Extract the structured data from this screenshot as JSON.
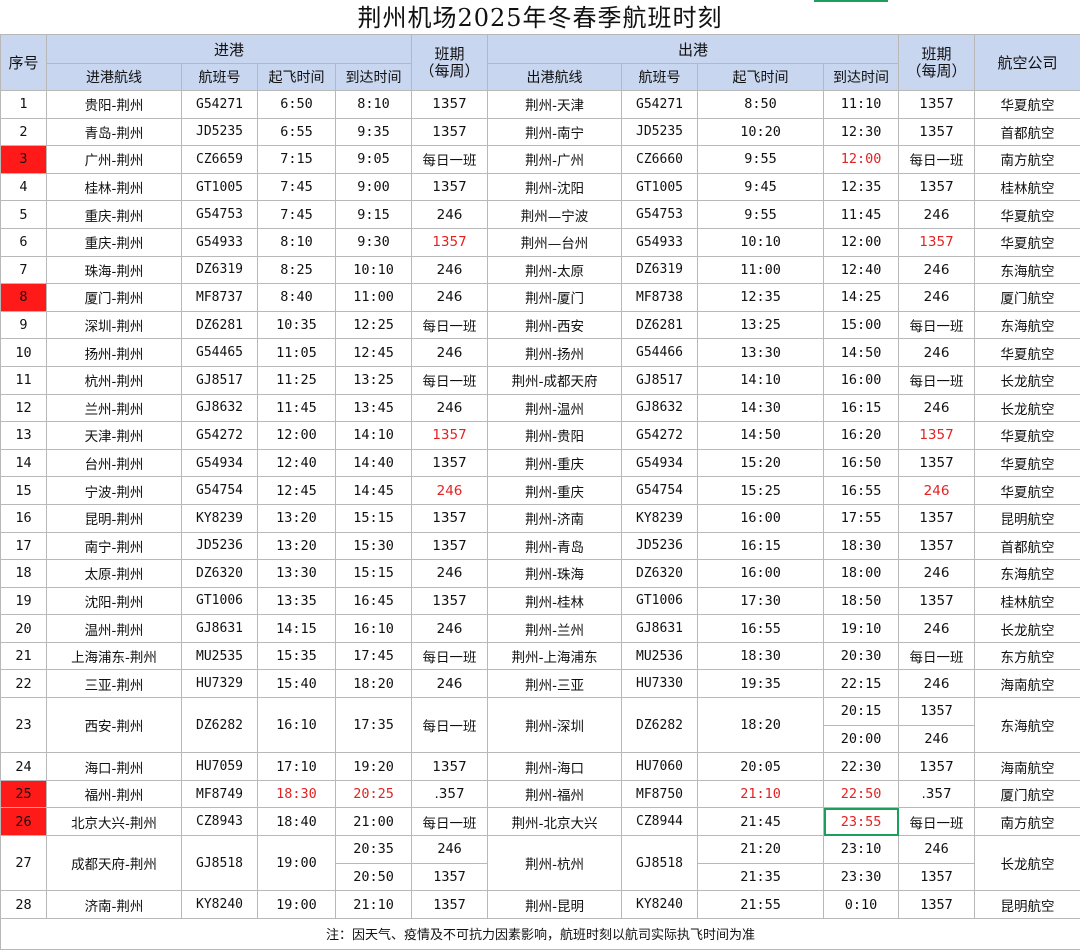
{
  "title": "荆州机场2025年冬春季航班时刻",
  "header": {
    "seq": "序号",
    "arrive_group": "进港",
    "depart_group": "出港",
    "freq": "班期\n（每周）",
    "airline": "航空公司",
    "arr_route": "进港航线",
    "dep_route": "出港航线",
    "flight_no": "航班号",
    "takeoff": "起飞时间",
    "landing": "到达时间"
  },
  "rows": [
    {
      "seq": "1",
      "arr_route": "贵阳-荆州",
      "arr_flight": "G54271",
      "arr_takeoff": "6:50",
      "arr_land": "8:10",
      "arr_freq": "1357",
      "dep_route": "荆州-天津",
      "dep_flight": "G54271",
      "dep_takeoff": "8:50",
      "dep_land": "11:10",
      "dep_freq": "1357",
      "airline": "华夏航空"
    },
    {
      "seq": "2",
      "arr_route": "青岛-荆州",
      "arr_flight": "JD5235",
      "arr_takeoff": "6:55",
      "arr_land": "9:35",
      "arr_freq": "1357",
      "dep_route": "荆州-南宁",
      "dep_flight": "JD5235",
      "dep_takeoff": "10:20",
      "dep_land": "12:30",
      "dep_freq": "1357",
      "airline": "首都航空"
    },
    {
      "seq": "3",
      "arr_route": "广州-荆州",
      "arr_flight": "CZ6659",
      "arr_takeoff": "7:15",
      "arr_land": "9:05",
      "arr_freq": "每日一班",
      "dep_route": "荆州-广州",
      "dep_flight": "CZ6660",
      "dep_takeoff": "9:55",
      "dep_land": "12:00",
      "dep_freq": "每日一班",
      "airline": "南方航空"
    },
    {
      "seq": "4",
      "arr_route": "桂林-荆州",
      "arr_flight": "GT1005",
      "arr_takeoff": "7:45",
      "arr_land": "9:00",
      "arr_freq": "1357",
      "dep_route": "荆州-沈阳",
      "dep_flight": "GT1005",
      "dep_takeoff": "9:45",
      "dep_land": "12:35",
      "dep_freq": "1357",
      "airline": "桂林航空"
    },
    {
      "seq": "5",
      "arr_route": "重庆-荆州",
      "arr_flight": "G54753",
      "arr_takeoff": "7:45",
      "arr_land": "9:15",
      "arr_freq": "246",
      "dep_route": "荆州—宁波",
      "dep_flight": "G54753",
      "dep_takeoff": "9:55",
      "dep_land": "11:45",
      "dep_freq": "246",
      "airline": "华夏航空"
    },
    {
      "seq": "6",
      "arr_route": "重庆-荆州",
      "arr_flight": "G54933",
      "arr_takeoff": "8:10",
      "arr_land": "9:30",
      "arr_freq": "1357",
      "dep_route": "荆州—台州",
      "dep_flight": "G54933",
      "dep_takeoff": "10:10",
      "dep_land": "12:00",
      "dep_freq": "1357",
      "airline": "华夏航空"
    },
    {
      "seq": "7",
      "arr_route": "珠海-荆州",
      "arr_flight": "DZ6319",
      "arr_takeoff": "8:25",
      "arr_land": "10:10",
      "arr_freq": "246",
      "dep_route": "荆州-太原",
      "dep_flight": "DZ6319",
      "dep_takeoff": "11:00",
      "dep_land": "12:40",
      "dep_freq": "246",
      "airline": "东海航空"
    },
    {
      "seq": "8",
      "arr_route": "厦门-荆州",
      "arr_flight": "MF8737",
      "arr_takeoff": "8:40",
      "arr_land": "11:00",
      "arr_freq": "246",
      "dep_route": "荆州-厦门",
      "dep_flight": "MF8738",
      "dep_takeoff": "12:35",
      "dep_land": "14:25",
      "dep_freq": "246",
      "airline": "厦门航空"
    },
    {
      "seq": "9",
      "arr_route": "深圳-荆州",
      "arr_flight": "DZ6281",
      "arr_takeoff": "10:35",
      "arr_land": "12:25",
      "arr_freq": "每日一班",
      "dep_route": "荆州-西安",
      "dep_flight": "DZ6281",
      "dep_takeoff": "13:25",
      "dep_land": "15:00",
      "dep_freq": "每日一班",
      "airline": "东海航空"
    },
    {
      "seq": "10",
      "arr_route": "扬州-荆州",
      "arr_flight": "G54465",
      "arr_takeoff": "11:05",
      "arr_land": "12:45",
      "arr_freq": "246",
      "dep_route": "荆州-扬州",
      "dep_flight": "G54466",
      "dep_takeoff": "13:30",
      "dep_land": "14:50",
      "dep_freq": "246",
      "airline": "华夏航空"
    },
    {
      "seq": "11",
      "arr_route": "杭州-荆州",
      "arr_flight": "GJ8517",
      "arr_takeoff": "11:25",
      "arr_land": "13:25",
      "arr_freq": "每日一班",
      "dep_route": "荆州-成都天府",
      "dep_flight": "GJ8517",
      "dep_takeoff": "14:10",
      "dep_land": "16:00",
      "dep_freq": "每日一班",
      "airline": "长龙航空"
    },
    {
      "seq": "12",
      "arr_route": "兰州-荆州",
      "arr_flight": "GJ8632",
      "arr_takeoff": "11:45",
      "arr_land": "13:45",
      "arr_freq": "246",
      "dep_route": "荆州-温州",
      "dep_flight": "GJ8632",
      "dep_takeoff": "14:30",
      "dep_land": "16:15",
      "dep_freq": "246",
      "airline": "长龙航空"
    },
    {
      "seq": "13",
      "arr_route": "天津-荆州",
      "arr_flight": "G54272",
      "arr_takeoff": "12:00",
      "arr_land": "14:10",
      "arr_freq": "1357",
      "dep_route": "荆州-贵阳",
      "dep_flight": "G54272",
      "dep_takeoff": "14:50",
      "dep_land": "16:20",
      "dep_freq": "1357",
      "airline": "华夏航空"
    },
    {
      "seq": "14",
      "arr_route": "台州-荆州",
      "arr_flight": "G54934",
      "arr_takeoff": "12:40",
      "arr_land": "14:40",
      "arr_freq": "1357",
      "dep_route": "荆州-重庆",
      "dep_flight": "G54934",
      "dep_takeoff": "15:20",
      "dep_land": "16:50",
      "dep_freq": "1357",
      "airline": "华夏航空"
    },
    {
      "seq": "15",
      "arr_route": "宁波-荆州",
      "arr_flight": "G54754",
      "arr_takeoff": "12:45",
      "arr_land": "14:45",
      "arr_freq": "246",
      "dep_route": "荆州-重庆",
      "dep_flight": "G54754",
      "dep_takeoff": "15:25",
      "dep_land": "16:55",
      "dep_freq": "246",
      "airline": "华夏航空"
    },
    {
      "seq": "16",
      "arr_route": "昆明-荆州",
      "arr_flight": "KY8239",
      "arr_takeoff": "13:20",
      "arr_land": "15:15",
      "arr_freq": "1357",
      "dep_route": "荆州-济南",
      "dep_flight": "KY8239",
      "dep_takeoff": "16:00",
      "dep_land": "17:55",
      "dep_freq": "1357",
      "airline": "昆明航空"
    },
    {
      "seq": "17",
      "arr_route": "南宁-荆州",
      "arr_flight": "JD5236",
      "arr_takeoff": "13:20",
      "arr_land": "15:30",
      "arr_freq": "1357",
      "dep_route": "荆州-青岛",
      "dep_flight": "JD5236",
      "dep_takeoff": "16:15",
      "dep_land": "18:30",
      "dep_freq": "1357",
      "airline": "首都航空"
    },
    {
      "seq": "18",
      "arr_route": "太原-荆州",
      "arr_flight": "DZ6320",
      "arr_takeoff": "13:30",
      "arr_land": "15:15",
      "arr_freq": "246",
      "dep_route": "荆州-珠海",
      "dep_flight": "DZ6320",
      "dep_takeoff": "16:00",
      "dep_land": "18:00",
      "dep_freq": "246",
      "airline": "东海航空"
    },
    {
      "seq": "19",
      "arr_route": "沈阳-荆州",
      "arr_flight": "GT1006",
      "arr_takeoff": "13:35",
      "arr_land": "16:45",
      "arr_freq": "1357",
      "dep_route": "荆州-桂林",
      "dep_flight": "GT1006",
      "dep_takeoff": "17:30",
      "dep_land": "18:50",
      "dep_freq": "1357",
      "airline": "桂林航空"
    },
    {
      "seq": "20",
      "arr_route": "温州-荆州",
      "arr_flight": "GJ8631",
      "arr_takeoff": "14:15",
      "arr_land": "16:10",
      "arr_freq": "246",
      "dep_route": "荆州-兰州",
      "dep_flight": "GJ8631",
      "dep_takeoff": "16:55",
      "dep_land": "19:10",
      "dep_freq": "246",
      "airline": "长龙航空"
    },
    {
      "seq": "21",
      "arr_route": "上海浦东-荆州",
      "arr_flight": "MU2535",
      "arr_takeoff": "15:35",
      "arr_land": "17:45",
      "arr_freq": "每日一班",
      "dep_route": "荆州-上海浦东",
      "dep_flight": "MU2536",
      "dep_takeoff": "18:30",
      "dep_land": "20:30",
      "dep_freq": "每日一班",
      "airline": "东方航空"
    },
    {
      "seq": "22",
      "arr_route": "三亚-荆州",
      "arr_flight": "HU7329",
      "arr_takeoff": "15:40",
      "arr_land": "18:20",
      "arr_freq": "246",
      "dep_route": "荆州-三亚",
      "dep_flight": "HU7330",
      "dep_takeoff": "19:35",
      "dep_land": "22:15",
      "dep_freq": "246",
      "airline": "海南航空"
    }
  ],
  "row23": {
    "seq": "23",
    "arr_route": "西安-荆州",
    "arr_flight": "DZ6282",
    "arr_takeoff": "16:10",
    "arr_land": "17:35",
    "arr_freq": "每日一班",
    "dep_route": "荆州-深圳",
    "dep_flight": "DZ6282",
    "dep_takeoff": "18:20",
    "dep_land_a": "20:15",
    "dep_freq_a": "1357",
    "dep_land_b": "20:00",
    "dep_freq_b": "246",
    "airline": "东海航空"
  },
  "rows_b": [
    {
      "seq": "24",
      "arr_route": "海口-荆州",
      "arr_flight": "HU7059",
      "arr_takeoff": "17:10",
      "arr_land": "19:20",
      "arr_freq": "1357",
      "dep_route": "荆州-海口",
      "dep_flight": "HU7060",
      "dep_takeoff": "20:05",
      "dep_land": "22:30",
      "dep_freq": "1357",
      "airline": "海南航空"
    },
    {
      "seq": "25",
      "arr_route": "福州-荆州",
      "arr_flight": "MF8749",
      "arr_takeoff": "18:30",
      "arr_land": "20:25",
      "arr_freq": ".357",
      "dep_route": "荆州-福州",
      "dep_flight": "MF8750",
      "dep_takeoff": "21:10",
      "dep_land": "22:50",
      "dep_freq": ".357",
      "airline": "厦门航空"
    },
    {
      "seq": "26",
      "arr_route": "北京大兴-荆州",
      "arr_flight": "CZ8943",
      "arr_takeoff": "18:40",
      "arr_land": "21:00",
      "arr_freq": "每日一班",
      "dep_route": "荆州-北京大兴",
      "dep_flight": "CZ8944",
      "dep_takeoff": "21:45",
      "dep_land": "23:55",
      "dep_freq": "每日一班",
      "airline": "南方航空"
    }
  ],
  "row27": {
    "seq": "27",
    "arr_route": "成都天府-荆州",
    "arr_flight": "GJ8518",
    "arr_takeoff": "19:00",
    "arr_land_a": "20:35",
    "arr_freq_a": "246",
    "arr_land_b": "20:50",
    "arr_freq_b": "1357",
    "dep_route": "荆州-杭州",
    "dep_flight": "GJ8518",
    "dep_takeoff_a": "21:20",
    "dep_land_a": "23:10",
    "dep_freq_a": "246",
    "dep_takeoff_b": "21:35",
    "dep_land_b": "23:30",
    "dep_freq_b": "1357",
    "airline": "长龙航空"
  },
  "row28": {
    "seq": "28",
    "arr_route": "济南-荆州",
    "arr_flight": "KY8240",
    "arr_takeoff": "19:00",
    "arr_land": "21:10",
    "arr_freq": "1357",
    "dep_route": "荆州-昆明",
    "dep_flight": "KY8240",
    "dep_takeoff": "21:55",
    "dep_land": "0:10",
    "dep_freq": "1357",
    "airline": "昆明航空"
  },
  "note": "注：因天气、疫情及不可抗力因素影响，航班时刻以航司实际执飞时间为准",
  "highlights": {
    "red_seq_bg": [
      "3",
      "8",
      "25",
      "26"
    ],
    "red_text_color": "#e32222",
    "red_bg_color": "#ff1a1a",
    "header_bg": "#c9d6ef",
    "selected_cell_border": "#1e9e5a"
  }
}
